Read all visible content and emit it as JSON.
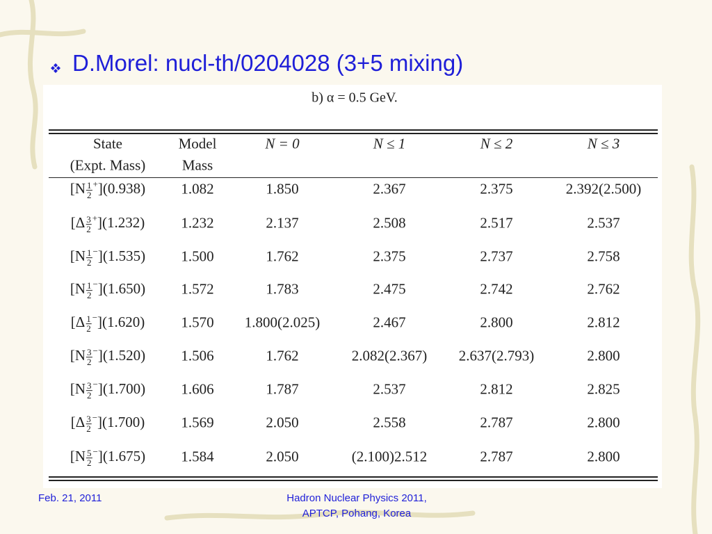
{
  "title": "D.Morel: nucl-th/0204028 (3+5 mixing)",
  "caption": "b) α = 0.5 GeV.",
  "table": {
    "header": [
      [
        "State",
        "(Expt. Mass)"
      ],
      [
        "Model",
        "Mass"
      ],
      [
        "N = 0"
      ],
      [
        "N ≤ 1"
      ],
      [
        "N ≤ 2"
      ],
      [
        "N ≤ 3"
      ]
    ],
    "rows": [
      {
        "state": {
          "name": "[N",
          "num": "1",
          "den": "2",
          "parity": "+",
          "tail": "](0.938)"
        },
        "cells": [
          "1.082",
          "1.850",
          "2.367",
          "2.375",
          "2.392(2.500)"
        ]
      },
      {
        "state": {
          "name": "[Δ",
          "num": "3",
          "den": "2",
          "parity": "+",
          "tail": "](1.232)"
        },
        "cells": [
          "1.232",
          "2.137",
          "2.508",
          "2.517",
          "2.537"
        ]
      },
      {
        "state": {
          "name": "[N",
          "num": "1",
          "den": "2",
          "parity": "−",
          "tail": "](1.535)"
        },
        "cells": [
          "1.500",
          "1.762",
          "2.375",
          "2.737",
          "2.758"
        ]
      },
      {
        "state": {
          "name": "[N",
          "num": "1",
          "den": "2",
          "parity": "−",
          "tail": "](1.650)"
        },
        "cells": [
          "1.572",
          "1.783",
          "2.475",
          "2.742",
          "2.762"
        ]
      },
      {
        "state": {
          "name": "[Δ",
          "num": "1",
          "den": "2",
          "parity": "−",
          "tail": "](1.620)"
        },
        "cells": [
          "1.570",
          "1.800(2.025)",
          "2.467",
          "2.800",
          "2.812"
        ]
      },
      {
        "state": {
          "name": "[N",
          "num": "3",
          "den": "2",
          "parity": "−",
          "tail": "](1.520)"
        },
        "cells": [
          "1.506",
          "1.762",
          "2.082(2.367)",
          "2.637(2.793)",
          "2.800"
        ]
      },
      {
        "state": {
          "name": "[N",
          "num": "3",
          "den": "2",
          "parity": "−",
          "tail": "](1.700)"
        },
        "cells": [
          "1.606",
          "1.787",
          "2.537",
          "2.812",
          "2.825"
        ]
      },
      {
        "state": {
          "name": "[Δ",
          "num": "3",
          "den": "2",
          "parity": "−",
          "tail": "](1.700)"
        },
        "cells": [
          "1.569",
          "2.050",
          "2.558",
          "2.787",
          "2.800"
        ]
      },
      {
        "state": {
          "name": "[N",
          "num": "5",
          "den": "2",
          "parity": "−",
          "tail": "](1.675)"
        },
        "cells": [
          "1.584",
          "2.050",
          "(2.100)2.512",
          "2.787",
          "2.800"
        ]
      }
    ]
  },
  "footer": {
    "date": "Feb. 21, 2011",
    "event": [
      "Hadron Nuclear Physics 2011,",
      "APTCP, Pohang, Korea"
    ]
  }
}
